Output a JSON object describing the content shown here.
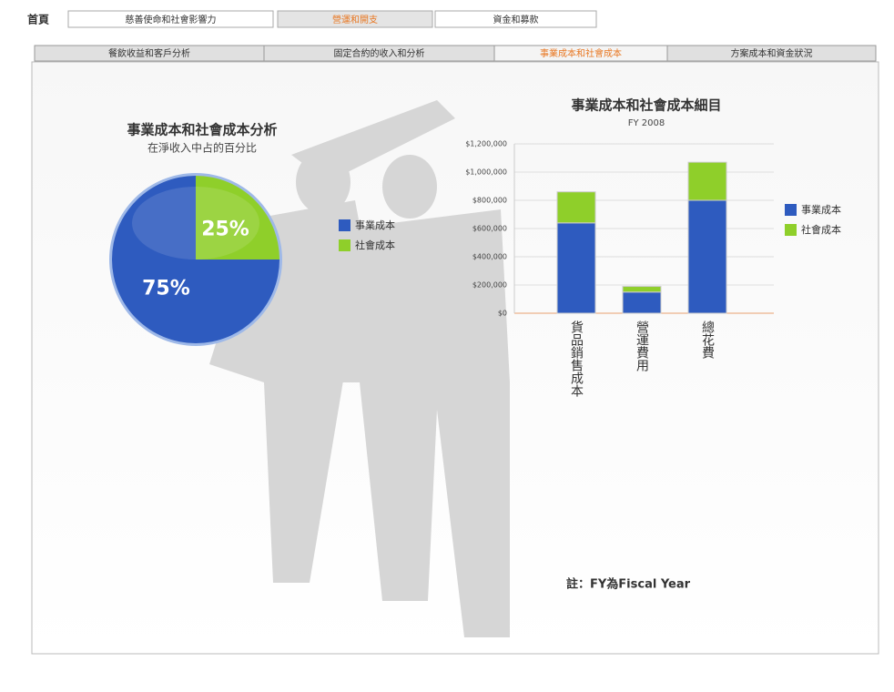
{
  "nav": {
    "tabs": [
      "首頁",
      "慈善使命和社會影響力",
      "營運和開支",
      "資金和募款"
    ],
    "active": 2
  },
  "subnav": {
    "tabs": [
      "餐飲收益和客戶分析",
      "固定合約的收入和分析",
      "事業成本和社會成本",
      "方案成本和資金狀況"
    ],
    "active": 2
  },
  "chart_data": [
    {
      "type": "pie",
      "title": "事業成本和社會成本分析",
      "subtitle": "在淨收入中占的百分比",
      "categories": [
        "事業成本",
        "社會成本"
      ],
      "values": [
        75,
        25
      ],
      "value_labels": [
        "75%",
        "25%"
      ],
      "colors": [
        "#2e5bbf",
        "#8fcf2a"
      ]
    },
    {
      "type": "bar",
      "stacked": true,
      "title": "事業成本和社會成本細目",
      "subtitle": "FY 2008",
      "categories": [
        "貨品銷售成本",
        "營運費用",
        "總花費"
      ],
      "series": [
        {
          "name": "事業成本",
          "color": "#2e5bbf",
          "values": [
            640000,
            150000,
            800000
          ]
        },
        {
          "name": "社會成本",
          "color": "#8fcf2a",
          "values": [
            220000,
            40000,
            270000
          ]
        }
      ],
      "ylim": [
        0,
        1200000
      ],
      "yticks": [
        {
          "value": 0,
          "label": "$0"
        },
        {
          "value": 200000,
          "label": "$200,000"
        },
        {
          "value": 400000,
          "label": "$400,000"
        },
        {
          "value": 600000,
          "label": "$600,000"
        },
        {
          "value": 800000,
          "label": "$800,000"
        },
        {
          "value": 1000000,
          "label": "$1,000,000"
        },
        {
          "value": 1200000,
          "label": "$1,200,000"
        }
      ],
      "grid": true
    }
  ],
  "note": "註：FY為Fiscal Year"
}
